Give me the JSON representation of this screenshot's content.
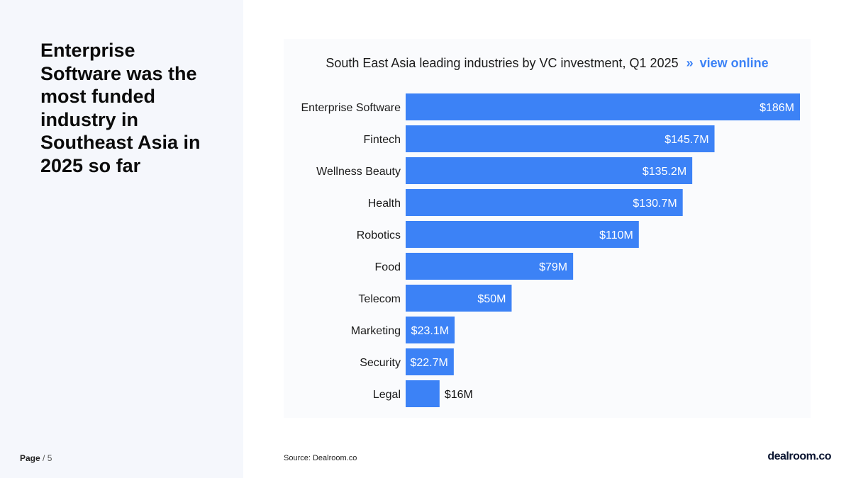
{
  "slide": {
    "headline": "Enterprise Software was the most funded industry in Southeast Asia in 2025 so far",
    "page_label": "Page",
    "page_number": "5",
    "source_label": "Source:",
    "source_value": "Dealroom.co",
    "logo_text": "dealroom.co"
  },
  "chart_header": {
    "title": "South East Asia leading industries by VC investment, Q1 2025",
    "link_arrow": "»",
    "link_text": "view online"
  },
  "colors": {
    "bar": "#3c82f6",
    "bar_label_inside": "#ffffff",
    "bar_label_outside": "#111111",
    "accent": "#3c82f6"
  },
  "chart_data": {
    "type": "bar",
    "orientation": "horizontal",
    "title": "South East Asia leading industries by VC investment, Q1 2025",
    "xlabel": "",
    "ylabel": "",
    "unit": "$M",
    "xlim": [
      0,
      186
    ],
    "grid": false,
    "categories": [
      "Enterprise Software",
      "Fintech",
      "Wellness Beauty",
      "Health",
      "Robotics",
      "Food",
      "Telecom",
      "Marketing",
      "Security",
      "Legal"
    ],
    "values": [
      186,
      145.7,
      135.2,
      130.7,
      110,
      79,
      50,
      23.1,
      22.7,
      16
    ],
    "labels": [
      "$186M",
      "$145.7M",
      "$135.2M",
      "$130.7M",
      "$110M",
      "$79M",
      "$50M",
      "$23.1M",
      "$22.7M",
      "$16M"
    ]
  }
}
